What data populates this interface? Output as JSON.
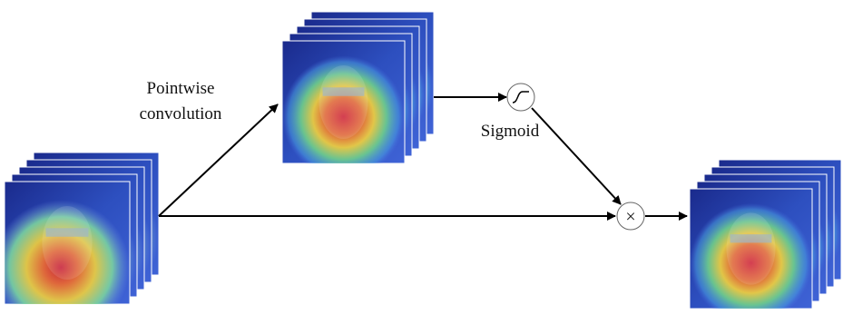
{
  "nodes": {
    "pointwise_label": [
      "Pointwise",
      "convolution"
    ],
    "sigmoid_label": "Sigmoid",
    "multiply_symbol": "×"
  }
}
